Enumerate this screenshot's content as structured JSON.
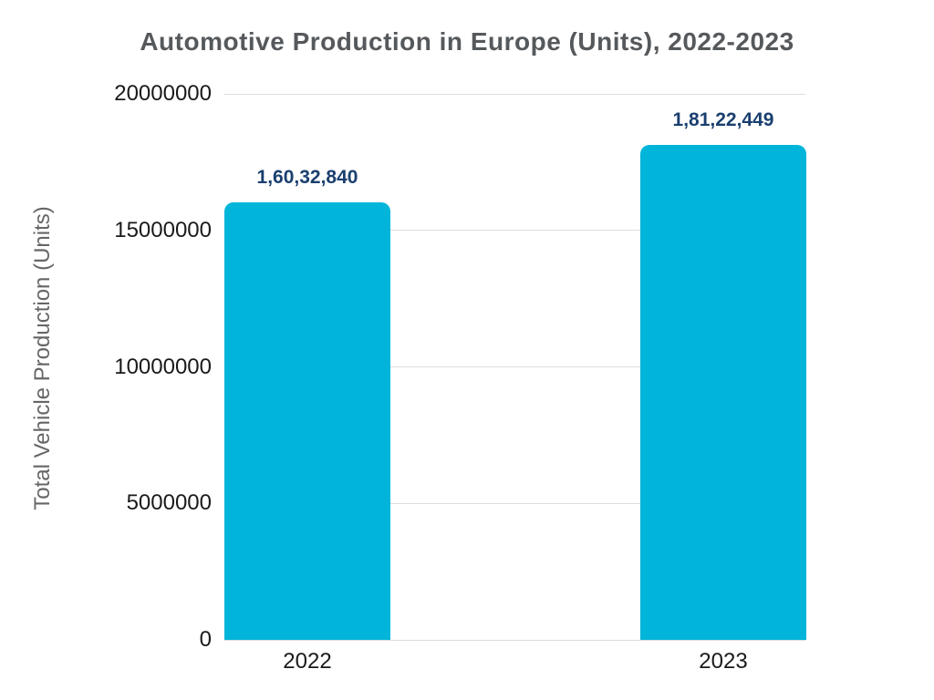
{
  "chart_data": {
    "type": "bar",
    "title": "Automotive Production in Europe (Units), 2022-2023",
    "ylabel": "Total Vehicle Production (Units)",
    "xlabel": "",
    "categories": [
      "2022",
      "2023"
    ],
    "values": [
      16032840,
      18122449
    ],
    "value_labels": [
      "1,60,32,840",
      "1,81,22,449"
    ],
    "ylim": [
      0,
      20000000
    ],
    "yticks": [
      0,
      5000000,
      10000000,
      15000000,
      20000000
    ],
    "ytick_labels": [
      "0",
      "5000000",
      "10000000",
      "15000000",
      "20000000"
    ],
    "grid": true,
    "legend_position": "none",
    "colors": {
      "bar": "#00B5D9",
      "value_label": "#1A3F6F",
      "title": "#56595C",
      "axis_title": "#666666",
      "tick_label": "#1A1A1A",
      "gridline": "#DCDCDC",
      "background": "#FFFFFF"
    }
  }
}
